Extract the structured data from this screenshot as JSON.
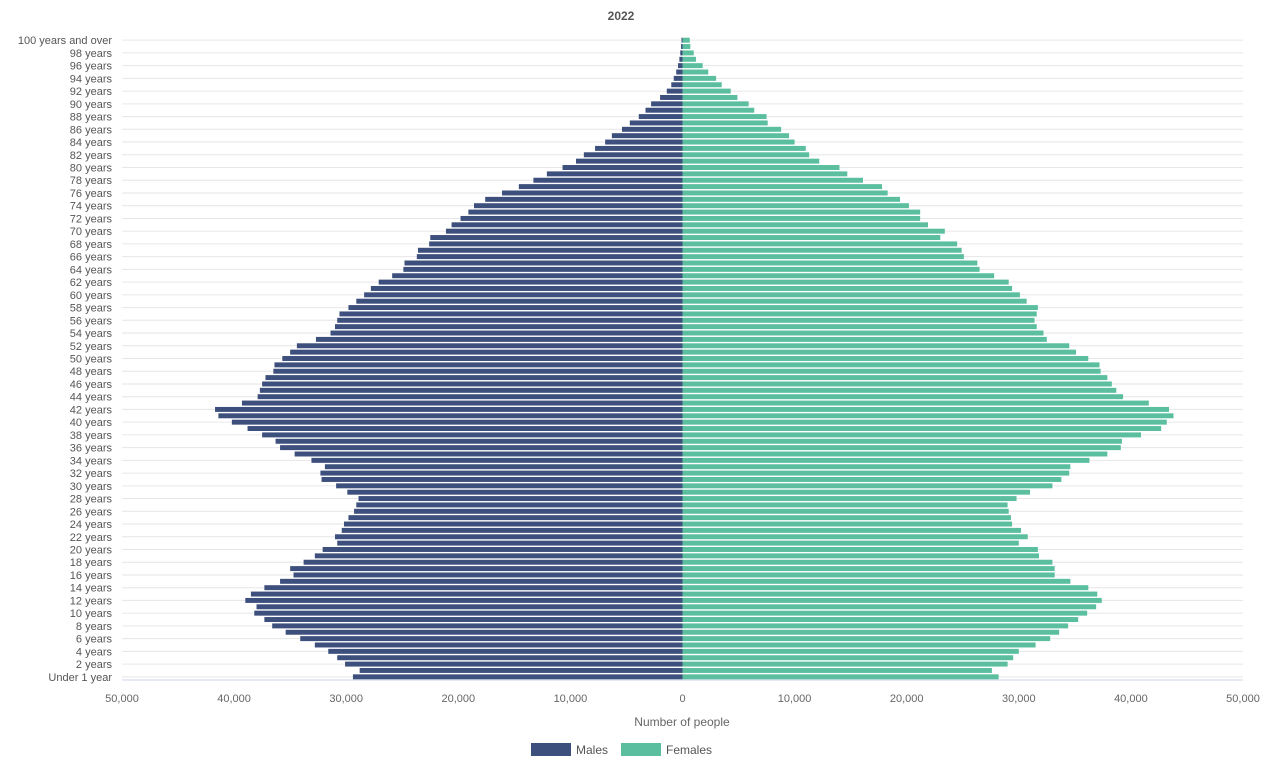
{
  "chart_data": {
    "type": "bar",
    "orientation": "horizontal",
    "title": "2022",
    "xlabel": "Number of people",
    "ylabel": "",
    "xlim": [
      -50000,
      50000
    ],
    "x_tick_values": [
      -50000,
      -40000,
      -30000,
      -20000,
      -10000,
      0,
      10000,
      20000,
      30000,
      40000,
      50000
    ],
    "x_tick_labels": [
      "50,000",
      "40,000",
      "30,000",
      "20,000",
      "10,000",
      "0",
      "10,000",
      "20,000",
      "30,000",
      "40,000",
      "50,000"
    ],
    "grid": true,
    "legend_position": "bottom-center",
    "categories": [
      "Under 1 year",
      "1 year",
      "2 years",
      "3 years",
      "4 years",
      "5 years",
      "6 years",
      "7 years",
      "8 years",
      "9 years",
      "10 years",
      "11 years",
      "12 years",
      "13 years",
      "14 years",
      "15 years",
      "16 years",
      "17 years",
      "18 years",
      "19 years",
      "20 years",
      "21 years",
      "22 years",
      "23 years",
      "24 years",
      "25 years",
      "26 years",
      "27 years",
      "28 years",
      "29 years",
      "30 years",
      "31 years",
      "32 years",
      "33 years",
      "34 years",
      "35 years",
      "36 years",
      "37 years",
      "38 years",
      "39 years",
      "40 years",
      "41 years",
      "42 years",
      "43 years",
      "44 years",
      "45 years",
      "46 years",
      "47 years",
      "48 years",
      "49 years",
      "50 years",
      "51 years",
      "52 years",
      "53 years",
      "54 years",
      "55 years",
      "56 years",
      "57 years",
      "58 years",
      "59 years",
      "60 years",
      "61 years",
      "62 years",
      "63 years",
      "64 years",
      "65 years",
      "66 years",
      "67 years",
      "68 years",
      "69 years",
      "70 years",
      "71 years",
      "72 years",
      "73 years",
      "74 years",
      "75 years",
      "76 years",
      "77 years",
      "78 years",
      "79 years",
      "80 years",
      "81 years",
      "82 years",
      "83 years",
      "84 years",
      "85 years",
      "86 years",
      "87 years",
      "88 years",
      "89 years",
      "90 years",
      "91 years",
      "92 years",
      "93 years",
      "94 years",
      "95 years",
      "96 years",
      "97 years",
      "98 years",
      "99 years",
      "100 years and over"
    ],
    "y_tick_labels": [
      "Under 1 year",
      "2 years",
      "4 years",
      "6 years",
      "8 years",
      "10 years",
      "12 years",
      "14 years",
      "16 years",
      "18 years",
      "20 years",
      "22 years",
      "24 years",
      "26 years",
      "28 years",
      "30 years",
      "32 years",
      "34 years",
      "36 years",
      "38 years",
      "40 years",
      "42 years",
      "44 years",
      "46 years",
      "48 years",
      "50 years",
      "52 years",
      "54 years",
      "56 years",
      "58 years",
      "60 years",
      "62 years",
      "64 years",
      "66 years",
      "68 years",
      "70 years",
      "72 years",
      "74 years",
      "76 years",
      "78 years",
      "80 years",
      "82 years",
      "84 years",
      "86 years",
      "88 years",
      "90 years",
      "92 years",
      "94 years",
      "96 years",
      "98 years",
      "100 years and over"
    ],
    "series": [
      {
        "name": "Males",
        "color": "#3d4f7c",
        "values": [
          29400,
          28800,
          30100,
          30800,
          31600,
          32800,
          34100,
          35400,
          36600,
          37300,
          38200,
          38000,
          39000,
          38500,
          37300,
          35900,
          34700,
          35000,
          33800,
          32800,
          32100,
          30800,
          31000,
          30400,
          30200,
          29800,
          29300,
          29100,
          28900,
          29900,
          30900,
          32200,
          32300,
          31900,
          33100,
          34600,
          35900,
          36300,
          37500,
          38800,
          40200,
          41400,
          41700,
          39300,
          37900,
          37700,
          37500,
          37200,
          36500,
          36400,
          35700,
          35000,
          34400,
          32700,
          31400,
          31000,
          30800,
          30600,
          29800,
          29100,
          28400,
          27800,
          27100,
          25900,
          24900,
          24800,
          23700,
          23600,
          22600,
          22500,
          21100,
          20600,
          19800,
          19100,
          18600,
          17600,
          16100,
          14600,
          13300,
          12100,
          10700,
          9500,
          8800,
          7800,
          6900,
          6300,
          5400,
          4700,
          3900,
          3300,
          2800,
          2000,
          1400,
          1000,
          780,
          560,
          400,
          280,
          200,
          130,
          90
        ]
      },
      {
        "name": "Females",
        "color": "#5bbf9f",
        "values": [
          28200,
          27600,
          29000,
          29500,
          30000,
          31500,
          32800,
          33600,
          34400,
          35300,
          36100,
          36900,
          37400,
          37000,
          36200,
          34600,
          33200,
          33200,
          33000,
          31800,
          31700,
          30000,
          30800,
          30200,
          29400,
          29300,
          29100,
          29000,
          29800,
          31000,
          33000,
          33800,
          34500,
          34600,
          36300,
          37900,
          39100,
          39200,
          40900,
          42700,
          43200,
          43800,
          43400,
          41600,
          39300,
          38700,
          38300,
          37900,
          37300,
          37200,
          36200,
          35100,
          34500,
          32500,
          32200,
          31600,
          31400,
          31600,
          31700,
          30700,
          30100,
          29400,
          29100,
          27800,
          26500,
          26300,
          25100,
          24900,
          24500,
          23000,
          23400,
          21900,
          21200,
          21200,
          20200,
          19400,
          18300,
          17800,
          16100,
          14700,
          14000,
          12200,
          11300,
          11000,
          10000,
          9500,
          8800,
          7600,
          7500,
          6400,
          5900,
          4900,
          4300,
          3500,
          3000,
          2300,
          1800,
          1200,
          1000,
          700,
          650
        ]
      }
    ]
  }
}
